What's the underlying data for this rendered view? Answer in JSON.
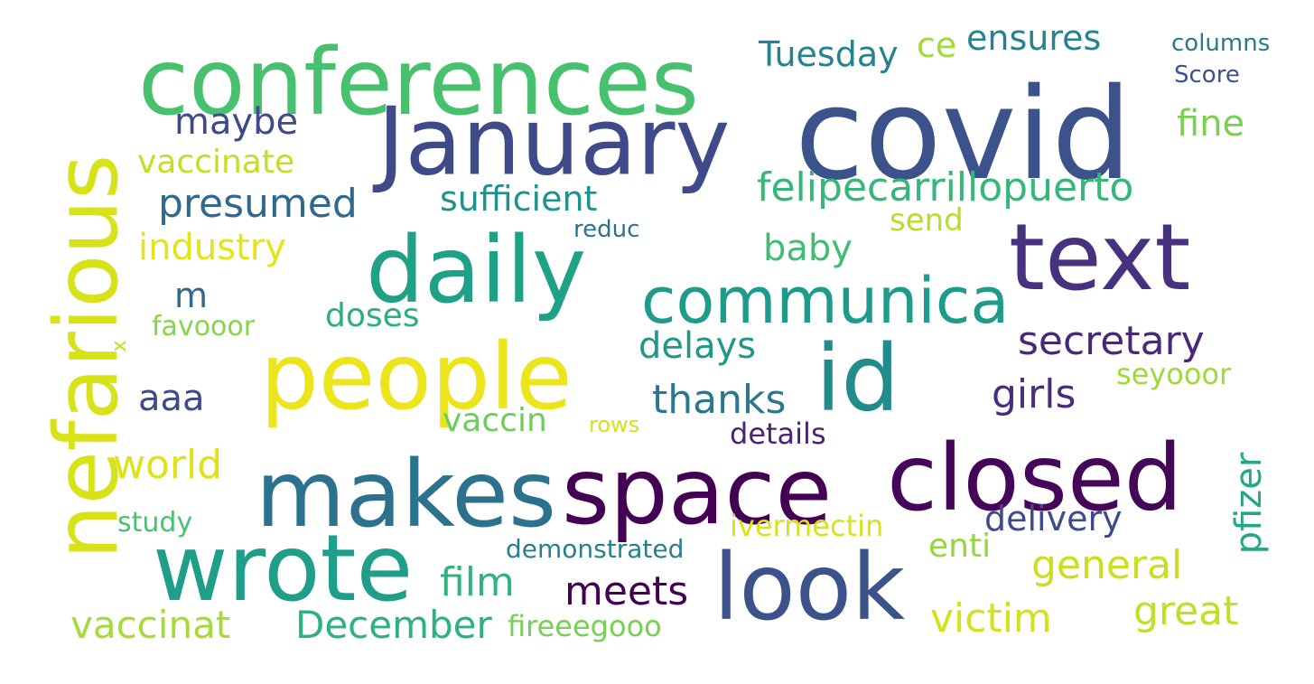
{
  "words": [
    {
      "text": "covid",
      "color": "#3b528b"
    },
    {
      "text": "conferences",
      "color": "#48c16e"
    },
    {
      "text": "January",
      "color": "#3e4a89"
    },
    {
      "text": "nefarious",
      "color": "#d8e219"
    },
    {
      "text": "daily",
      "color": "#1fa187"
    },
    {
      "text": "text",
      "color": "#46327e"
    },
    {
      "text": "space",
      "color": "#440154"
    },
    {
      "text": "closed",
      "color": "#450559"
    },
    {
      "text": "people",
      "color": "#ece51b"
    },
    {
      "text": "id",
      "color": "#228c8d"
    },
    {
      "text": "makes",
      "color": "#2c728e"
    },
    {
      "text": "wrote",
      "color": "#1f9e89"
    },
    {
      "text": "look",
      "color": "#3b528b"
    },
    {
      "text": "communica",
      "color": "#1e9b8a"
    },
    {
      "text": "felipecarrillopuerto",
      "color": "#35b779"
    },
    {
      "text": "Tuesday",
      "color": "#26828e"
    },
    {
      "text": "ce",
      "color": "#a0da39"
    },
    {
      "text": "ensures",
      "color": "#26828e"
    },
    {
      "text": "columns",
      "color": "#2a788e"
    },
    {
      "text": "Score",
      "color": "#3b528b"
    },
    {
      "text": "fine",
      "color": "#7ad151"
    },
    {
      "text": "maybe",
      "color": "#3e4a89"
    },
    {
      "text": "vaccinate",
      "color": "#c2df23"
    },
    {
      "text": "presumed",
      "color": "#31688e"
    },
    {
      "text": "sufficient",
      "color": "#21918c"
    },
    {
      "text": "reduc",
      "color": "#2c728e"
    },
    {
      "text": "send",
      "color": "#b5de2b"
    },
    {
      "text": "industry",
      "color": "#e5e419"
    },
    {
      "text": "baby",
      "color": "#40bd72"
    },
    {
      "text": "m",
      "color": "#31688e"
    },
    {
      "text": "doses",
      "color": "#2ab07f"
    },
    {
      "text": "favooor",
      "color": "#86d549"
    },
    {
      "text": "x",
      "color": "#bddf26"
    },
    {
      "text": "delays",
      "color": "#1f988b"
    },
    {
      "text": "secretary",
      "color": "#482878"
    },
    {
      "text": "aaa",
      "color": "#3e4a89"
    },
    {
      "text": "thanks",
      "color": "#2a788e"
    },
    {
      "text": "girls",
      "color": "#472d7b"
    },
    {
      "text": "seyooor",
      "color": "#a0da39"
    },
    {
      "text": "vaccin",
      "color": "#6ccd5a"
    },
    {
      "text": "rows",
      "color": "#d2e21b"
    },
    {
      "text": "details",
      "color": "#482475"
    },
    {
      "text": "world",
      "color": "#dde318"
    },
    {
      "text": "pfizer",
      "color": "#22a884"
    },
    {
      "text": "study",
      "color": "#4ac16d"
    },
    {
      "text": "ivermectin",
      "color": "#d8e219"
    },
    {
      "text": "delivery",
      "color": "#3e4a89"
    },
    {
      "text": "demonstrated",
      "color": "#277f8e"
    },
    {
      "text": "enti",
      "color": "#93d741"
    },
    {
      "text": "general",
      "color": "#c8e020"
    },
    {
      "text": "film",
      "color": "#2fb47c"
    },
    {
      "text": "meets",
      "color": "#440154"
    },
    {
      "text": "vaccinat",
      "color": "#a5db36"
    },
    {
      "text": "December",
      "color": "#2db27d"
    },
    {
      "text": "fireeegooo",
      "color": "#75d054"
    },
    {
      "text": "victim",
      "color": "#d2e21b"
    },
    {
      "text": "great",
      "color": "#c0df25"
    }
  ]
}
